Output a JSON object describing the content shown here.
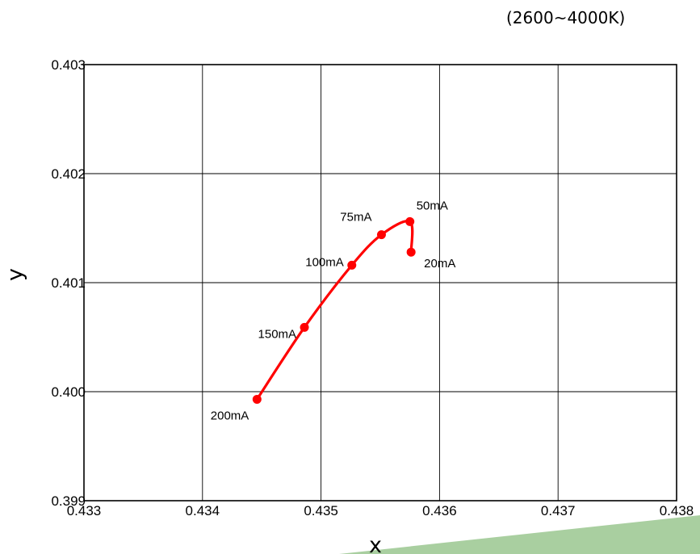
{
  "chart_data": {
    "type": "line",
    "title": "",
    "subtitle": "(2600~4000K)",
    "xlabel": "x",
    "ylabel": "y",
    "xlim": [
      0.433,
      0.438
    ],
    "ylim": [
      0.399,
      0.403
    ],
    "x_ticks": [
      "0.433",
      "0.434",
      "0.435",
      "0.436",
      "0.437",
      "0.438"
    ],
    "y_ticks": [
      "0.399",
      "0.400",
      "0.401",
      "0.402",
      "0.403"
    ],
    "grid": true,
    "legend": "none",
    "series": [
      {
        "color": "#ff0000",
        "points": [
          {
            "label": "20mA",
            "x": 0.43576,
            "y": 0.40128
          },
          {
            "label": "50mA",
            "x": 0.43575,
            "y": 0.40156
          },
          {
            "label": "75mA",
            "x": 0.43551,
            "y": 0.40144
          },
          {
            "label": "100mA",
            "x": 0.43526,
            "y": 0.40116
          },
          {
            "label": "150mA",
            "x": 0.43486,
            "y": 0.40059
          },
          {
            "label": "200mA",
            "x": 0.43446,
            "y": 0.39993
          }
        ]
      }
    ]
  },
  "colors": {
    "series": "#ff0000",
    "grid": "#000000",
    "decoration": "#a9cfa0"
  }
}
